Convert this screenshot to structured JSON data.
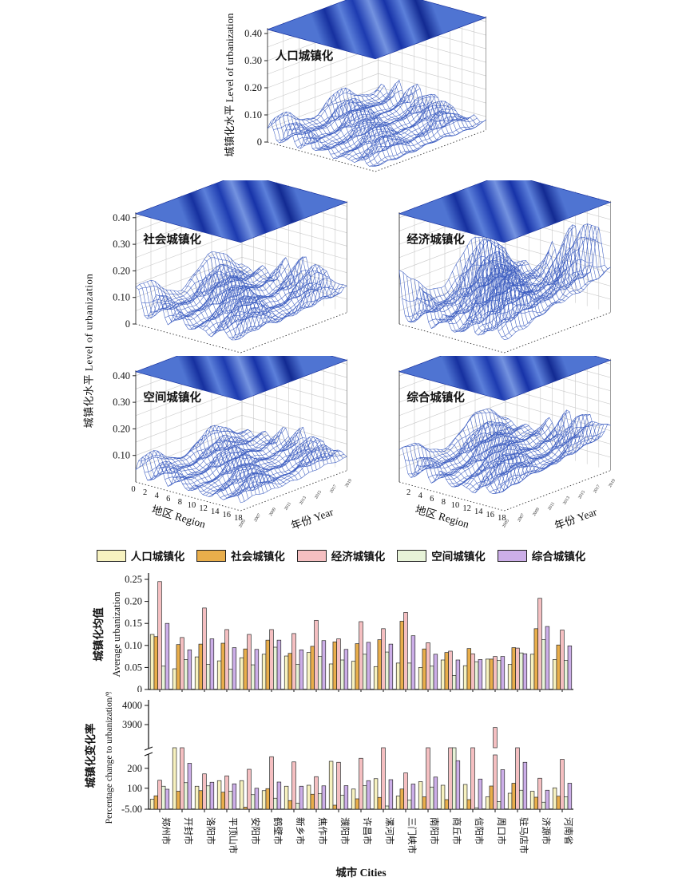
{
  "surface_section": {
    "z_axis_label": "城镇化水平 Level of urbanization",
    "z_ticks": [
      "0.40",
      "0.30",
      "0.20",
      "0.10",
      "0"
    ],
    "region_axis_label": "地区 Region",
    "region_ticks": [
      0,
      2,
      4,
      6,
      8,
      10,
      12,
      14,
      16,
      18
    ],
    "year_axis_label": "年份 Year",
    "year_ticks": [
      "2005",
      "2007",
      "2009",
      "2011",
      "2013",
      "2015",
      "2017",
      "2019"
    ],
    "wireframe_color": "#3b5cc0",
    "sheet_colors": [
      "#4f74d2",
      "#16309f",
      "#5c80da",
      "#1d3bb0",
      "#7493e0",
      "#1733a8",
      "#5c80da",
      "#122a92",
      "#4f74d2"
    ],
    "panels": [
      {
        "key": "population",
        "title": "人口城镇化",
        "z_range": [
          0,
          0.4
        ],
        "approx_surface_max": 0.12
      },
      {
        "key": "social",
        "title": "社会城镇化",
        "z_range": [
          0,
          0.4
        ],
        "approx_surface_max": 0.2
      },
      {
        "key": "economic",
        "title": "经济城镇化",
        "z_range": [
          0,
          0.4
        ],
        "approx_surface_max": 0.35
      },
      {
        "key": "spatial",
        "title": "空间城镇化",
        "z_range": [
          0,
          0.4
        ],
        "approx_surface_max": 0.16
      },
      {
        "key": "comprehensive",
        "title": "综合城镇化",
        "z_range": [
          0,
          0.4
        ],
        "approx_surface_max": 0.22
      }
    ]
  },
  "legend": {
    "items": [
      {
        "label": "人口城镇化",
        "color": "#f7f2c0"
      },
      {
        "label": "社会城镇化",
        "color": "#e9ae4b"
      },
      {
        "label": "经济城镇化",
        "color": "#f5bfc1"
      },
      {
        "label": "空间城镇化",
        "color": "#e7f3d8"
      },
      {
        "label": "综合城镇化",
        "color": "#ccaee8"
      }
    ]
  },
  "chart_data": [
    {
      "type": "bar",
      "title": "城镇化均值 Average urbanization",
      "ylabel_zh": "城镇化均值",
      "ylabel_en": "Average urbanization",
      "ylim": [
        0,
        0.25
      ],
      "yticks": [
        "0.25",
        "0.20",
        "0.15",
        "0.10",
        "0.05",
        "0"
      ],
      "grid": false,
      "legend_position": "top",
      "categories": [
        "郑州市",
        "开封市",
        "洛阳市",
        "平顶山市",
        "安阳市",
        "鹤壁市",
        "新乡市",
        "焦作市",
        "濮阳市",
        "许昌市",
        "漯河市",
        "三门峡市",
        "南阳市",
        "商丘市",
        "信阳市",
        "周口市",
        "驻马店市",
        "济源市",
        "河南省"
      ],
      "series": [
        {
          "name": "人口城镇化",
          "values": [
            0.125,
            0.047,
            0.074,
            0.065,
            0.072,
            0.08,
            0.076,
            0.084,
            0.058,
            0.064,
            0.052,
            0.06,
            0.05,
            0.067,
            0.054,
            0.069,
            0.057,
            0.08,
            0.068
          ]
        },
        {
          "name": "社会城镇化",
          "values": [
            0.12,
            0.102,
            0.103,
            0.105,
            0.092,
            0.112,
            0.082,
            0.098,
            0.108,
            0.104,
            0.113,
            0.155,
            0.092,
            0.084,
            0.093,
            0.069,
            0.095,
            0.138,
            0.101
          ]
        },
        {
          "name": "经济城镇化",
          "values": [
            0.245,
            0.118,
            0.185,
            0.136,
            0.125,
            0.136,
            0.127,
            0.157,
            0.115,
            0.154,
            0.138,
            0.175,
            0.106,
            0.087,
            0.081,
            0.075,
            0.094,
            0.207,
            0.135
          ]
        },
        {
          "name": "空间城镇化",
          "values": [
            0.053,
            0.068,
            0.057,
            0.046,
            0.056,
            0.096,
            0.057,
            0.075,
            0.067,
            0.08,
            0.085,
            0.06,
            0.053,
            0.032,
            0.063,
            0.066,
            0.083,
            0.113,
            0.066
          ]
        },
        {
          "name": "综合城镇化",
          "values": [
            0.15,
            0.09,
            0.115,
            0.095,
            0.091,
            0.112,
            0.09,
            0.111,
            0.091,
            0.107,
            0.103,
            0.122,
            0.08,
            0.067,
            0.068,
            0.075,
            0.081,
            0.143,
            0.099
          ]
        }
      ]
    },
    {
      "type": "bar",
      "title": "城镇化变化率 Percentage change to urbanization/%",
      "ylabel_zh": "城镇化变化率",
      "ylabel_en": "Percentage change to urbanization/%",
      "xlabel": "城市 Cities",
      "yticks_lower": [
        "-5.00",
        "100",
        "200"
      ],
      "yticks_upper": [
        "3900",
        "4000"
      ],
      "axis_break": [
        300,
        3800
      ],
      "grid": false,
      "categories": [
        "郑州市",
        "开封市",
        "洛阳市",
        "平顶山市",
        "安阳市",
        "鹤壁市",
        "新乡市",
        "焦作市",
        "濮阳市",
        "许昌市",
        "漯河市",
        "三门峡市",
        "南阳市",
        "商丘市",
        "信阳市",
        "周口市",
        "驻马店市",
        "济源市",
        "河南省"
      ],
      "series": [
        {
          "name": "人口城镇化",
          "values": [
            45,
            310,
            110,
            138,
            138,
            88,
            110,
            115,
            235,
            96,
            148,
            61,
            133,
            115,
            119,
            57,
            75,
            85,
            102
          ]
        },
        {
          "name": "社会城镇化",
          "values": [
            62,
            85,
            88,
            80,
            5,
            98,
            38,
            70,
            15,
            47,
            54,
            96,
            57,
            43,
            43,
            111,
            125,
            55,
            60
          ]
        },
        {
          "name": "经济城镇化",
          "values": [
            140,
            310,
            172,
            162,
            195,
            258,
            232,
            158,
            230,
            250,
            310,
            177,
            310,
            310,
            310,
            3885,
            310,
            150,
            245
          ]
        },
        {
          "name": "空间城镇化",
          "values": [
            110,
            128,
            112,
            85,
            68,
            50,
            25,
            73,
            65,
            113,
            11,
            40,
            106,
            310,
            2,
            33,
            90,
            30,
            57
          ]
        },
        {
          "name": "综合城镇化",
          "values": [
            95,
            225,
            130,
            122,
            100,
            131,
            110,
            112,
            113,
            138,
            143,
            121,
            156,
            238,
            146,
            193,
            230,
            90,
            125
          ]
        }
      ]
    }
  ]
}
